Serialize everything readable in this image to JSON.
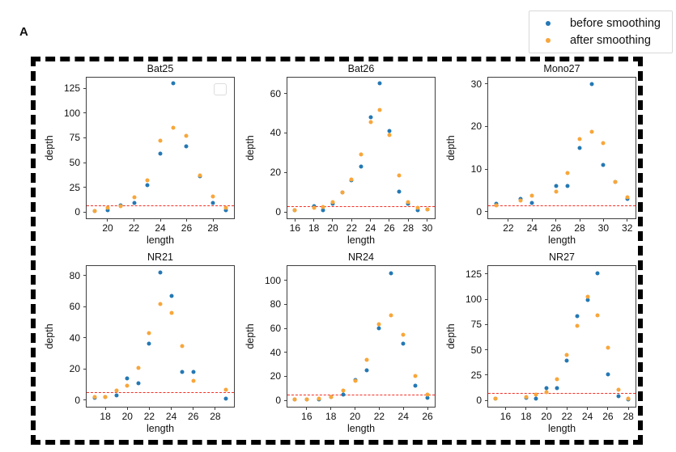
{
  "figure": {
    "panel_label": "A",
    "legend": {
      "items": [
        {
          "label": "before smoothing",
          "color": "#2478b4"
        },
        {
          "label": "after smoothing",
          "color": "#f8a63a"
        }
      ]
    },
    "threshold_color": "#f53126",
    "colors": {
      "before": "#2478b4",
      "after": "#f8a63a"
    }
  },
  "chart_data": [
    {
      "type": "scatter",
      "title": "Bat25",
      "xlabel": "length",
      "ylabel": "depth",
      "xlim": [
        18.4,
        29.6
      ],
      "ylim": [
        -6.5,
        136
      ],
      "xticks": [
        20,
        22,
        24,
        26,
        28
      ],
      "yticks": [
        0,
        25,
        50,
        75,
        100,
        125
      ],
      "threshold_y": 7,
      "empty_legend_box": true,
      "grid": false,
      "series": [
        {
          "name": "before smoothing",
          "color_key": "before",
          "points": [
            [
              19,
              1
            ],
            [
              20,
              2
            ],
            [
              21,
              7
            ],
            [
              22,
              9
            ],
            [
              23,
              27
            ],
            [
              24,
              59
            ],
            [
              25,
              130
            ],
            [
              26,
              66
            ],
            [
              27,
              36
            ],
            [
              28,
              9
            ],
            [
              29,
              2
            ]
          ]
        },
        {
          "name": "after smoothing",
          "color_key": "after",
          "points": [
            [
              19,
              1
            ],
            [
              20,
              4
            ],
            [
              21,
              6
            ],
            [
              22,
              15
            ],
            [
              23,
              32
            ],
            [
              24,
              72
            ],
            [
              25,
              85
            ],
            [
              26,
              77
            ],
            [
              27,
              37
            ],
            [
              28,
              16
            ],
            [
              29,
              4
            ]
          ]
        }
      ]
    },
    {
      "type": "scatter",
      "title": "Bat26",
      "xlabel": "length",
      "ylabel": "depth",
      "xlim": [
        15.2,
        30.8
      ],
      "ylim": [
        -3.2,
        68
      ],
      "xticks": [
        16,
        18,
        20,
        22,
        24,
        26,
        28,
        30
      ],
      "yticks": [
        0,
        20,
        40,
        60
      ],
      "threshold_y": 3,
      "empty_legend_box": false,
      "grid": false,
      "series": [
        {
          "name": "before smoothing",
          "color_key": "before",
          "points": [
            [
              16,
              1
            ],
            [
              18,
              3
            ],
            [
              19,
              1
            ],
            [
              20,
              4
            ],
            [
              21,
              10
            ],
            [
              22,
              16
            ],
            [
              23,
              23
            ],
            [
              24,
              48
            ],
            [
              25,
              65
            ],
            [
              26,
              41
            ],
            [
              27,
              10.5
            ],
            [
              28,
              4
            ],
            [
              29,
              1
            ],
            [
              30,
              1.5
            ]
          ]
        },
        {
          "name": "after smoothing",
          "color_key": "after",
          "points": [
            [
              16,
              1
            ],
            [
              18,
              2
            ],
            [
              19,
              2.5
            ],
            [
              20,
              5
            ],
            [
              21,
              10
            ],
            [
              22,
              16.5
            ],
            [
              23,
              29
            ],
            [
              24,
              45.5
            ],
            [
              25,
              51.5
            ],
            [
              26,
              39
            ],
            [
              27,
              18.5
            ],
            [
              28,
              5
            ],
            [
              29,
              2
            ],
            [
              30,
              1.5
            ]
          ]
        }
      ]
    },
    {
      "type": "scatter",
      "title": "Mono27",
      "xlabel": "length",
      "ylabel": "depth",
      "xlim": [
        20.3,
        32.7
      ],
      "ylim": [
        -1.6,
        31.5
      ],
      "xticks": [
        22,
        24,
        26,
        28,
        30,
        32
      ],
      "yticks": [
        0,
        10,
        20,
        30
      ],
      "threshold_y": 1.5,
      "empty_legend_box": false,
      "grid": false,
      "series": [
        {
          "name": "before smoothing",
          "color_key": "before",
          "points": [
            [
              21,
              1.8
            ],
            [
              23,
              3
            ],
            [
              24,
              2
            ],
            [
              26,
              6
            ],
            [
              27,
              6
            ],
            [
              28,
              15
            ],
            [
              29,
              30
            ],
            [
              30,
              11
            ],
            [
              31,
              7
            ],
            [
              32,
              3
            ]
          ]
        },
        {
          "name": "after smoothing",
          "color_key": "after",
          "points": [
            [
              21,
              1.5
            ],
            [
              23,
              2.5
            ],
            [
              24,
              3.7
            ],
            [
              26,
              4.7
            ],
            [
              27,
              9
            ],
            [
              28,
              17
            ],
            [
              29,
              18.8
            ],
            [
              30,
              16
            ],
            [
              31,
              7
            ],
            [
              32,
              3.4
            ]
          ]
        }
      ]
    },
    {
      "type": "scatter",
      "title": "NR21",
      "xlabel": "length",
      "ylabel": "depth",
      "xlim": [
        16.3,
        29.7
      ],
      "ylim": [
        -4.2,
        86
      ],
      "xticks": [
        18,
        20,
        22,
        24,
        26,
        28
      ],
      "yticks": [
        0,
        20,
        40,
        60,
        80
      ],
      "threshold_y": 5,
      "empty_legend_box": false,
      "grid": false,
      "series": [
        {
          "name": "before smoothing",
          "color_key": "before",
          "points": [
            [
              17,
              1.5
            ],
            [
              18,
              2
            ],
            [
              19,
              3
            ],
            [
              20,
              14
            ],
            [
              21,
              11
            ],
            [
              22,
              36
            ],
            [
              23,
              82
            ],
            [
              24,
              67
            ],
            [
              25,
              18
            ],
            [
              26,
              18
            ],
            [
              29,
              1
            ]
          ]
        },
        {
          "name": "after smoothing",
          "color_key": "after",
          "points": [
            [
              17,
              2
            ],
            [
              18,
              2.2
            ],
            [
              19,
              6
            ],
            [
              20,
              9.5
            ],
            [
              21,
              20.5
            ],
            [
              22,
              43
            ],
            [
              23,
              61.5
            ],
            [
              24,
              56
            ],
            [
              25,
              34.5
            ],
            [
              26,
              12.5
            ],
            [
              29,
              6.5
            ]
          ]
        }
      ]
    },
    {
      "type": "scatter",
      "title": "NR24",
      "xlabel": "length",
      "ylabel": "depth",
      "xlim": [
        14.4,
        26.6
      ],
      "ylim": [
        -5.3,
        112
      ],
      "xticks": [
        16,
        18,
        20,
        22,
        24,
        26
      ],
      "yticks": [
        0,
        20,
        40,
        60,
        80,
        100
      ],
      "threshold_y": 5,
      "empty_legend_box": false,
      "grid": false,
      "series": [
        {
          "name": "before smoothing",
          "color_key": "before",
          "points": [
            [
              15,
              0.5
            ],
            [
              16,
              1
            ],
            [
              17,
              0.5
            ],
            [
              18,
              3
            ],
            [
              19,
              5
            ],
            [
              20,
              17
            ],
            [
              21,
              25
            ],
            [
              22,
              60
            ],
            [
              23,
              106
            ],
            [
              24,
              47
            ],
            [
              25,
              12.5
            ],
            [
              26,
              2
            ]
          ]
        },
        {
          "name": "after smoothing",
          "color_key": "after",
          "points": [
            [
              15,
              1
            ],
            [
              16,
              1
            ],
            [
              17,
              1.5
            ],
            [
              18,
              3
            ],
            [
              19,
              8
            ],
            [
              20,
              16
            ],
            [
              21,
              34
            ],
            [
              22,
              63.5
            ],
            [
              23,
              71
            ],
            [
              24,
              55
            ],
            [
              25,
              20.5
            ],
            [
              26,
              4.5
            ]
          ]
        }
      ]
    },
    {
      "type": "scatter",
      "title": "NR27",
      "xlabel": "length",
      "ylabel": "depth",
      "xlim": [
        14.3,
        28.7
      ],
      "ylim": [
        -6.3,
        133
      ],
      "xticks": [
        16,
        18,
        20,
        22,
        24,
        26,
        28
      ],
      "yticks": [
        0,
        25,
        50,
        75,
        100,
        125
      ],
      "threshold_y": 7,
      "empty_legend_box": false,
      "grid": false,
      "series": [
        {
          "name": "before smoothing",
          "color_key": "before",
          "points": [
            [
              15,
              2
            ],
            [
              18,
              2.5
            ],
            [
              19,
              2
            ],
            [
              20,
              12
            ],
            [
              21,
              12
            ],
            [
              22,
              39
            ],
            [
              23,
              83
            ],
            [
              24,
              99.5
            ],
            [
              25,
              126
            ],
            [
              26,
              26
            ],
            [
              27,
              4
            ],
            [
              28,
              1
            ]
          ]
        },
        {
          "name": "after smoothing",
          "color_key": "after",
          "points": [
            [
              15,
              2
            ],
            [
              18,
              3
            ],
            [
              19,
              6
            ],
            [
              20,
              8
            ],
            [
              21,
              21
            ],
            [
              22,
              45
            ],
            [
              23,
              74
            ],
            [
              24,
              102.5
            ],
            [
              25,
              84
            ],
            [
              26,
              52
            ],
            [
              27,
              10.5
            ],
            [
              28,
              1.5
            ]
          ]
        }
      ]
    }
  ]
}
